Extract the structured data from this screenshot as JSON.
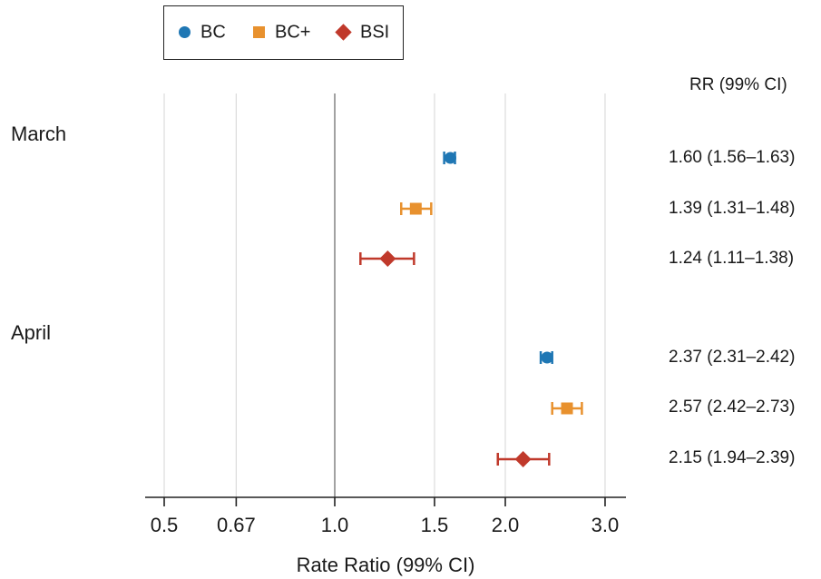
{
  "legend": {
    "items": [
      {
        "label": "BC",
        "shape": "circle",
        "color": "#1f77b4"
      },
      {
        "label": "BC+",
        "shape": "square",
        "color": "#e8912e"
      },
      {
        "label": "BSI",
        "shape": "diamond",
        "color": "#c0392b"
      }
    ]
  },
  "rr_header": "RR (99% CI)",
  "chart_data": {
    "type": "forest",
    "xlabel": "Rate Ratio (99% CI)",
    "xscale": "log",
    "xlim": [
      0.48,
      3.15
    ],
    "xticks": [
      0.5,
      0.67,
      1.0,
      1.5,
      2.0,
      3.0
    ],
    "xtick_labels": [
      "0.5",
      "0.67",
      "1.0",
      "1.5",
      "2.0",
      "3.0"
    ],
    "reference_line": 1.0,
    "grid": true,
    "groups": [
      {
        "label": "March",
        "rows": [
          {
            "series": "BC",
            "rr": 1.6,
            "lo": 1.56,
            "hi": 1.63,
            "text": "1.60 (1.56–1.63)"
          },
          {
            "series": "BC+",
            "rr": 1.39,
            "lo": 1.31,
            "hi": 1.48,
            "text": "1.39 (1.31–1.48)"
          },
          {
            "series": "BSI",
            "rr": 1.24,
            "lo": 1.11,
            "hi": 1.38,
            "text": "1.24 (1.11–1.38)"
          }
        ]
      },
      {
        "label": "April",
        "rows": [
          {
            "series": "BC",
            "rr": 2.37,
            "lo": 2.31,
            "hi": 2.42,
            "text": "2.37 (2.31–2.42)"
          },
          {
            "series": "BC+",
            "rr": 2.57,
            "lo": 2.42,
            "hi": 2.73,
            "text": "2.57 (2.42–2.73)"
          },
          {
            "series": "BSI",
            "rr": 2.15,
            "lo": 1.94,
            "hi": 2.39,
            "text": "2.15 (1.94–2.39)"
          }
        ]
      }
    ]
  }
}
